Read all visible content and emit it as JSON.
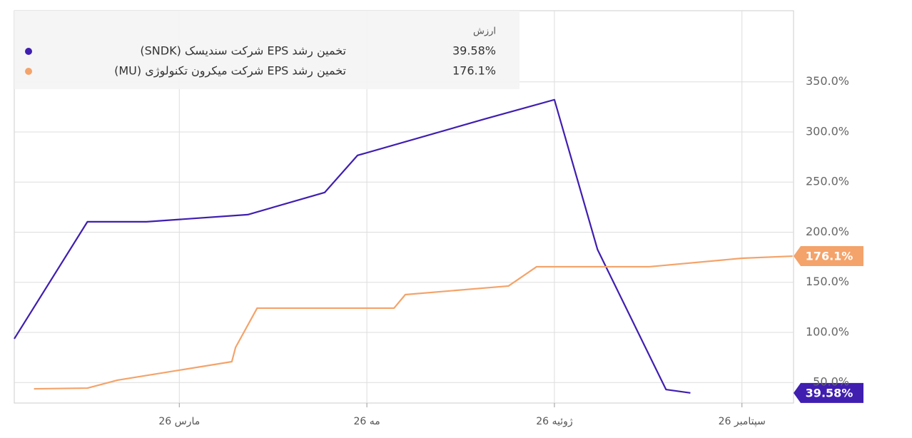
{
  "chart_data": {
    "type": "line",
    "legend_title": "ارزش",
    "xlim": [
      1.24,
      9.55
    ],
    "xticks": [
      {
        "value": 3,
        "label": "مارس 26"
      },
      {
        "value": 5,
        "label": "مه 26"
      },
      {
        "value": 7,
        "label": "ژوئیه 26"
      },
      {
        "value": 9,
        "label": "سپتامبر 26"
      }
    ],
    "ylim": [
      29.5,
      421
    ],
    "yticks": [
      {
        "value": 50,
        "label": "50.0%"
      },
      {
        "value": 100,
        "label": "100.0%"
      },
      {
        "value": 150,
        "label": "150.0%"
      },
      {
        "value": 200,
        "label": "200.0%"
      },
      {
        "value": 250,
        "label": "250.0%"
      },
      {
        "value": 300,
        "label": "300.0%"
      },
      {
        "value": 350,
        "label": "350.0%"
      }
    ],
    "grid": true,
    "series": [
      {
        "name": "تخمین رشد EPS شرکت سندیسک (SNDK)",
        "color": "#3f1eb0",
        "x": [
          1.24,
          2.02,
          2.65,
          3.73,
          4.55,
          4.9,
          6.26,
          7.0,
          7.46,
          8.19,
          8.45
        ],
        "values": [
          93.6,
          210.4,
          210.4,
          217.5,
          239.6,
          276.6,
          313,
          332.2,
          182.6,
          43,
          39.58
        ],
        "value_labels": [
          null,
          null,
          null,
          null,
          null,
          null,
          null,
          null,
          null,
          null,
          "39.58%"
        ]
      },
      {
        "name": "تخمین رشد EPS شرکت میکرون تکنولوژی (MU)",
        "color": "#f4a36a",
        "x": [
          1.45,
          2.02,
          2.34,
          3.56,
          3.6,
          3.83,
          5.29,
          5.41,
          6.51,
          6.81,
          8.01,
          9.0,
          9.54
        ],
        "values": [
          43.7,
          44.4,
          52.3,
          70.8,
          85,
          124.2,
          124.2,
          137.7,
          146.3,
          165.5,
          165.5,
          174,
          176.1
        ],
        "value_labels": [
          null,
          null,
          null,
          null,
          null,
          null,
          null,
          null,
          null,
          null,
          null,
          null,
          "176.1%"
        ]
      }
    ]
  }
}
